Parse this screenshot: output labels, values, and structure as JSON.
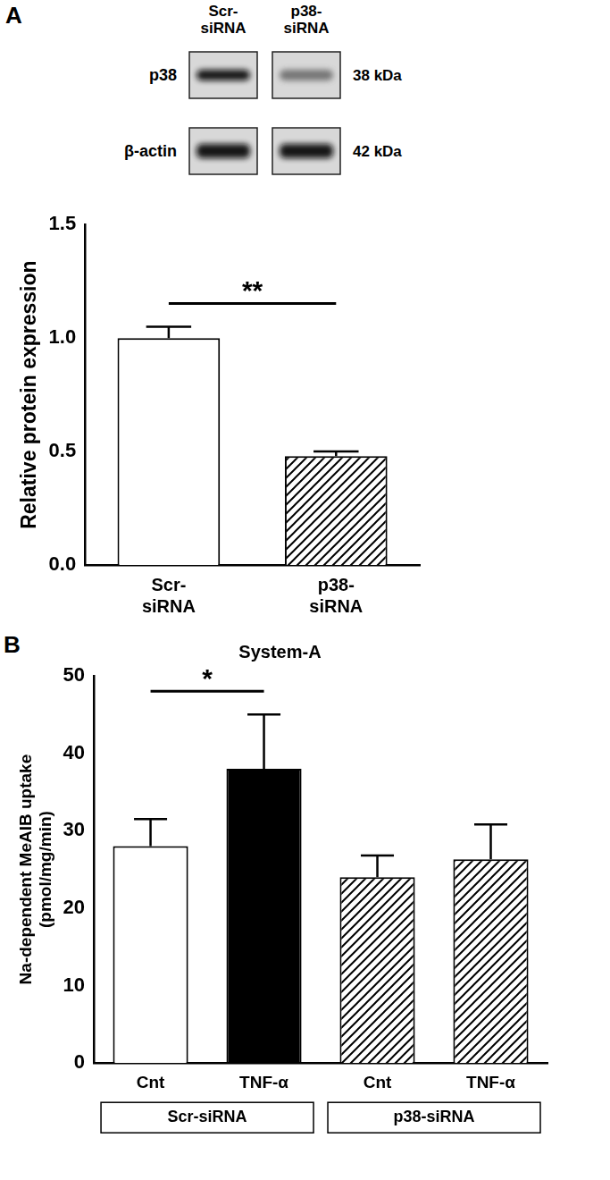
{
  "blot": {
    "panel_label": "A",
    "lanes": [
      "Scr-siRNA",
      "p38-siRNA"
    ],
    "rows": [
      {
        "protein": "p38",
        "size": "38 kDa"
      },
      {
        "protein": "β-actin",
        "size": "42 kDa"
      }
    ]
  },
  "chart_data": [
    {
      "panel_label": "A",
      "type": "bar",
      "categories": [
        [
          "Scr-",
          "siRNA"
        ],
        [
          "p38-",
          "siRNA"
        ]
      ],
      "values": [
        1.0,
        0.48
      ],
      "errors": [
        0.05,
        0.02
      ],
      "colors": [
        "#ffffff",
        "#ffffff"
      ],
      "y_label": "Relative protein expression",
      "ylim": [
        0,
        1.5
      ],
      "yticks": [
        {
          "value": 0,
          "label": "0.0"
        },
        {
          "value": 0.5,
          "label": "0.5"
        },
        {
          "value": 1,
          "label": "1.0"
        },
        {
          "value": 1.5,
          "label": "1.5"
        }
      ],
      "grid": false,
      "annotations": [
        {
          "text": "**",
          "from": 0,
          "to": 1
        }
      ]
    },
    {
      "panel_label": "B",
      "type": "bar",
      "title": "System-A",
      "categories": [
        "Cnt",
        "TNF-α",
        "Cnt",
        "TNF-α"
      ],
      "groups": [
        {
          "label": "Scr-siRNA",
          "from": 0,
          "to": 1
        },
        {
          "label": "p38-siRNA",
          "from": 2,
          "to": 3
        }
      ],
      "values": [
        28,
        38,
        24,
        26.3
      ],
      "errors": [
        3.5,
        7,
        2.8,
        4.5
      ],
      "colors": [
        "#ffffff",
        "#000000",
        "#ffffff",
        "#ffffff"
      ],
      "y_label": [
        "Na-dependent MeAIB uptake",
        "(pmol/mg/min)"
      ],
      "ylim": [
        0,
        50
      ],
      "yticks": [
        0,
        10,
        20,
        30,
        40,
        50
      ],
      "grid": false,
      "annotations": [
        {
          "text": "*",
          "from": 0,
          "to": 1
        }
      ]
    }
  ]
}
